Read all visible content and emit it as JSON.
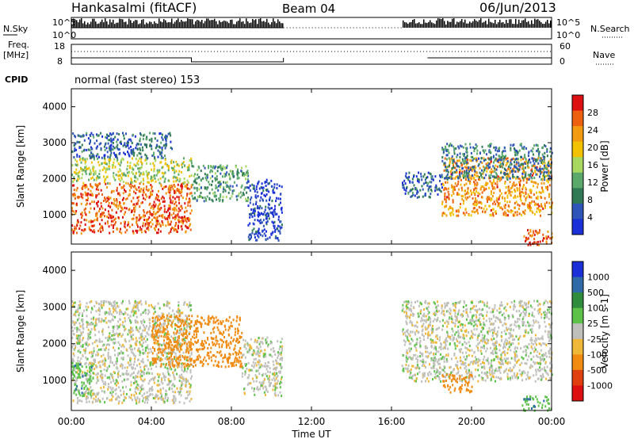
{
  "header": {
    "station": "Hankasalmi (fitACF)",
    "beam": "Beam 04",
    "date": "06/Jun/2013"
  },
  "mode_line": "normal (fast stereo) 153",
  "cpid_label": "CPID",
  "top_panels": {
    "nsky": {
      "left_label": "N.Sky",
      "right_label": "N.Search",
      "left_ticks": [
        "10^5",
        "10^0"
      ],
      "right_ticks": [
        "10^5",
        "10^0"
      ]
    },
    "freq": {
      "left_label": "Freq.",
      "left_unit": "[MHz]",
      "right_label": "Nave",
      "left_ticks": [
        "18",
        "8"
      ],
      "right_ticks": [
        "60",
        "0"
      ]
    }
  },
  "colors": {
    "power": [
      "#1a2fd8",
      "#2f55b8",
      "#2f7a55",
      "#5aa86a",
      "#a8d860",
      "#f2c200",
      "#f29a10",
      "#ec6010",
      "#dc1010"
    ],
    "velocity": [
      "#1a2fd8",
      "#2f6aa8",
      "#2f8c3c",
      "#5cc24a",
      "#bfbfbb",
      "#f0b838",
      "#f08a10",
      "#e04010",
      "#dc1010"
    ]
  },
  "chart_data": [
    {
      "type": "heatmap",
      "title": "",
      "xlabel": "Time UT",
      "ylabel": "Slant Range [km]",
      "x_ticks": [
        "00:00",
        "04:00",
        "08:00",
        "12:00",
        "16:00",
        "20:00",
        "00:00"
      ],
      "xlim_hours": [
        0,
        24
      ],
      "ylim": [
        180,
        4500
      ],
      "y_ticks": [
        1000,
        2000,
        3000,
        4000
      ],
      "colorbar": {
        "label": "Power [dB]",
        "ticks": [
          "4",
          "8",
          "12",
          "16",
          "20",
          "24",
          "28"
        ],
        "range": [
          0,
          30
        ]
      },
      "regions": [
        {
          "t": [
            0.0,
            6.0
          ],
          "r": [
            500,
            1900
          ],
          "value": 25
        },
        {
          "t": [
            0.0,
            6.0
          ],
          "r": [
            1900,
            2600
          ],
          "value": 15
        },
        {
          "t": [
            0.0,
            5.0
          ],
          "r": [
            2600,
            3300
          ],
          "value": 6
        },
        {
          "t": [
            6.0,
            8.8
          ],
          "r": [
            1400,
            2400
          ],
          "value": 10
        },
        {
          "t": [
            8.8,
            10.5
          ],
          "r": [
            300,
            2000
          ],
          "value": 3
        },
        {
          "t": [
            16.5,
            18.5
          ],
          "r": [
            1500,
            2200
          ],
          "value": 6
        },
        {
          "t": [
            18.5,
            24.0
          ],
          "r": [
            1000,
            2600
          ],
          "value": 22
        },
        {
          "t": [
            18.5,
            24.0
          ],
          "r": [
            2000,
            3000
          ],
          "value": 8
        },
        {
          "t": [
            22.5,
            24.0
          ],
          "r": [
            180,
            600
          ],
          "value": 26
        }
      ]
    },
    {
      "type": "heatmap",
      "title": "",
      "xlabel": "Time UT",
      "ylabel": "Slant Range [km]",
      "x_ticks": [
        "00:00",
        "04:00",
        "08:00",
        "12:00",
        "16:00",
        "20:00",
        "00:00"
      ],
      "xlim_hours": [
        0,
        24
      ],
      "ylim": [
        180,
        4500
      ],
      "y_ticks": [
        1000,
        2000,
        3000,
        4000
      ],
      "colorbar": {
        "label": "Velocity [m s-1]",
        "ticks": [
          "1000",
          "500",
          "100",
          "25",
          "-25",
          "-100",
          "-500",
          "-1000"
        ],
        "range": [
          -1000,
          1000
        ]
      },
      "regions": [
        {
          "t": [
            0.0,
            6.0
          ],
          "r": [
            400,
            3200
          ],
          "value": 0
        },
        {
          "t": [
            0.0,
            1.0
          ],
          "r": [
            600,
            1500
          ],
          "value": 80
        },
        {
          "t": [
            4.0,
            8.5
          ],
          "r": [
            1400,
            2800
          ],
          "value": -300
        },
        {
          "t": [
            8.5,
            10.5
          ],
          "r": [
            600,
            2200
          ],
          "value": 0
        },
        {
          "t": [
            16.5,
            24.0
          ],
          "r": [
            1000,
            3200
          ],
          "value": 0
        },
        {
          "t": [
            18.5,
            20.0
          ],
          "r": [
            700,
            1200
          ],
          "value": -300
        },
        {
          "t": [
            22.5,
            24.0
          ],
          "r": [
            200,
            600
          ],
          "value": 80
        }
      ]
    }
  ]
}
